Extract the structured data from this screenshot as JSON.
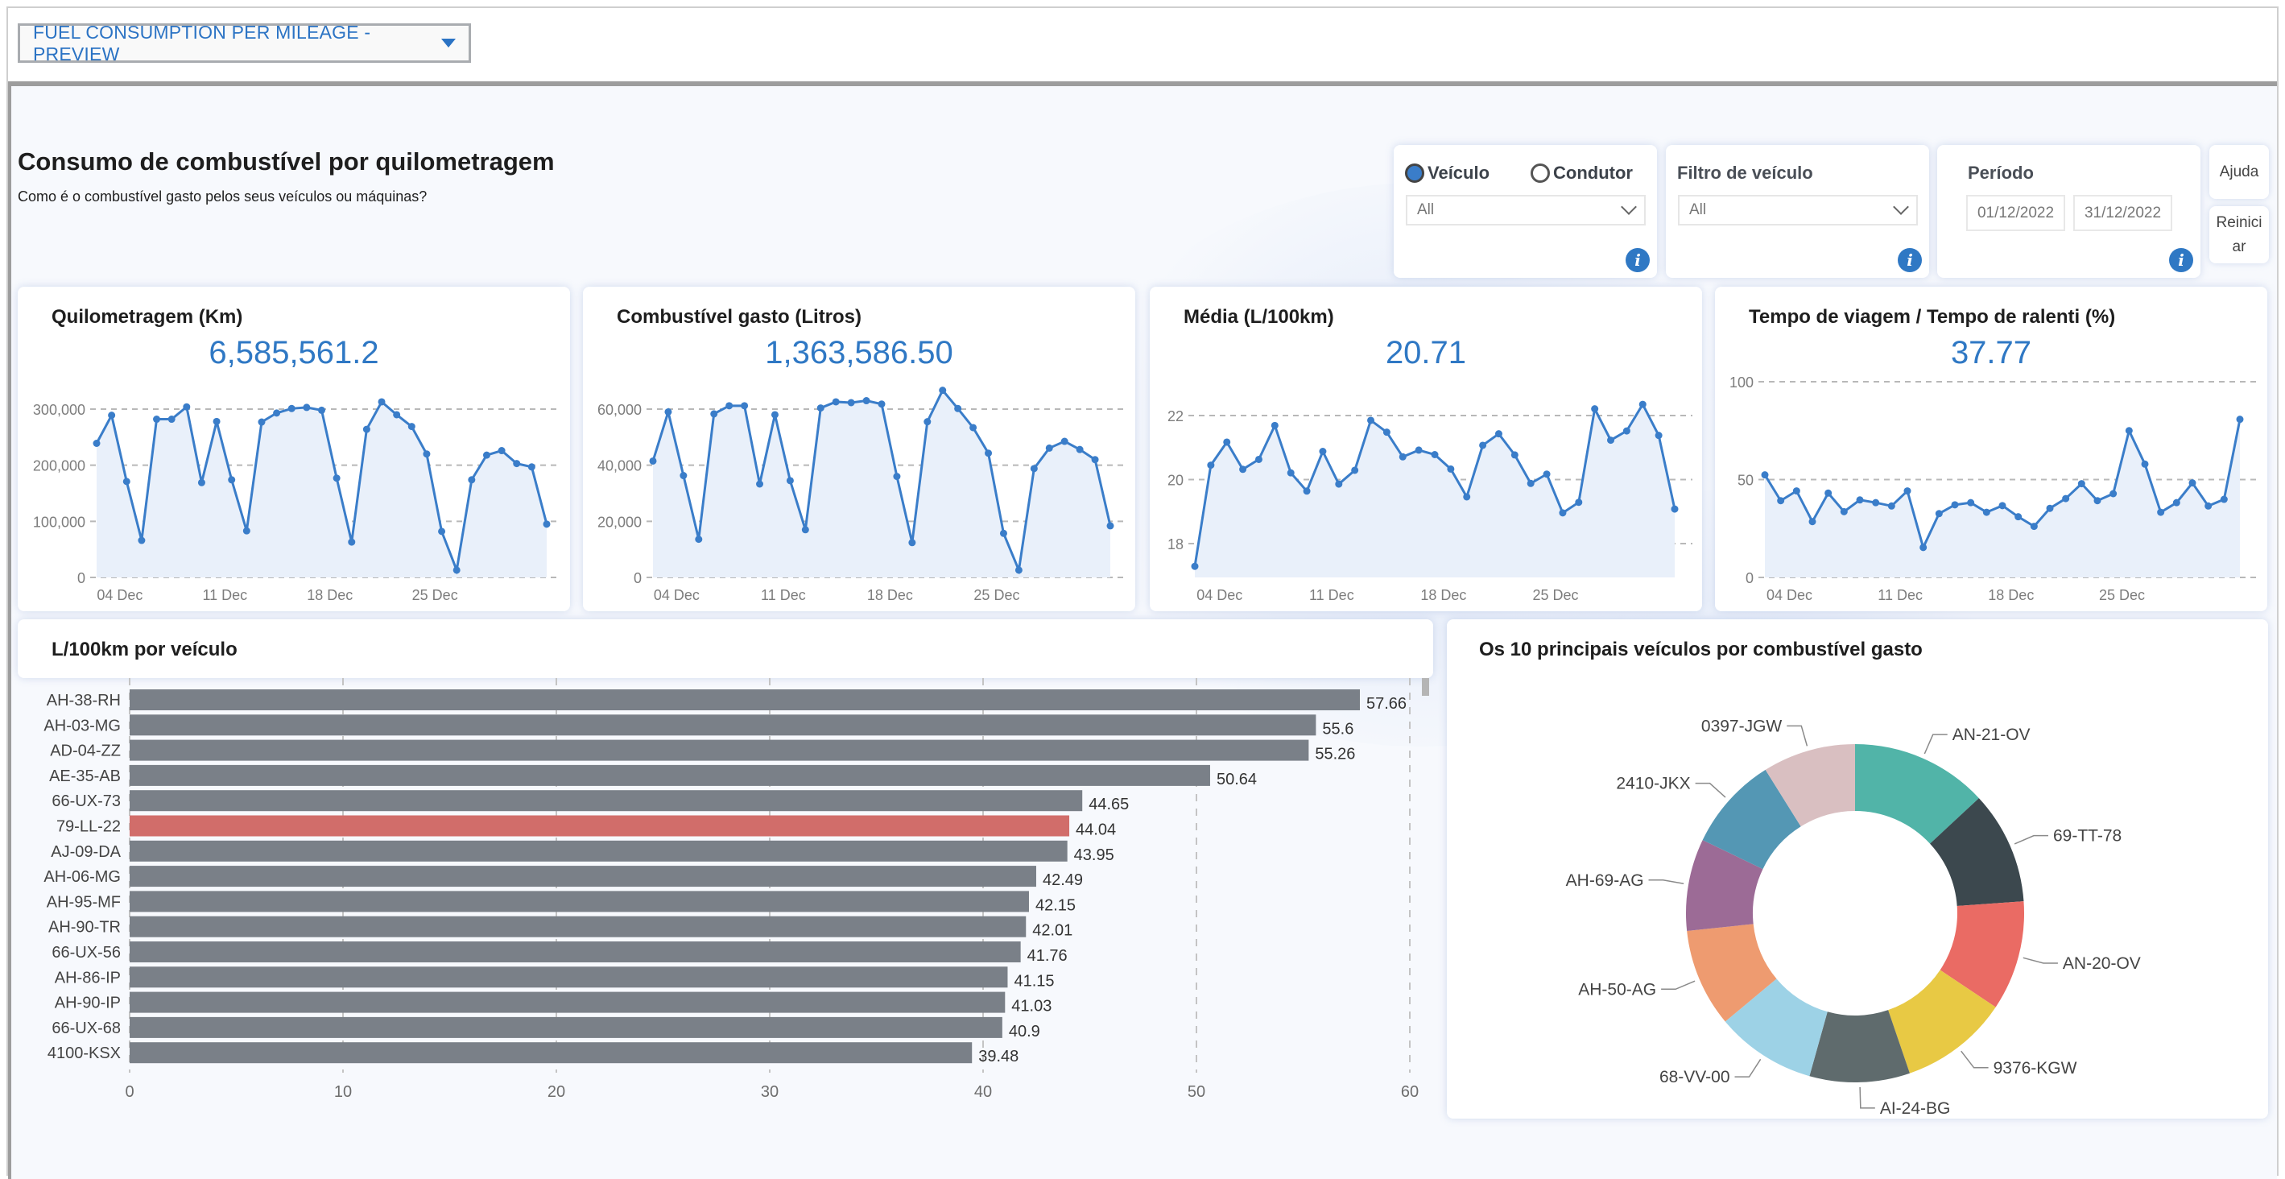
{
  "header": {
    "report_dropdown": "FUEL CONSUMPTION PER MILEAGE - PREVIEW"
  },
  "page": {
    "title": "Consumo de combustível por quilometragem",
    "subtitle": "Como é o combustível gasto pelos seus veículos ou máquinas?"
  },
  "filters": {
    "mode": {
      "options": [
        "Veículo",
        "Condutor"
      ],
      "selected": "Veículo",
      "dropdown_value": "All"
    },
    "vehicle_filter": {
      "label": "Filtro de veículo",
      "value": "All"
    },
    "period": {
      "label": "Período",
      "start": "01/12/2022",
      "end": "31/12/2022"
    },
    "help_button": "Ajuda",
    "reset_button": "Reiniciar"
  },
  "colors": {
    "accent": "#2f78c4",
    "line": "#3a7dc9",
    "area": "#e9f0fa",
    "bar": "#7a8088",
    "bar_highlight": "#d16d6a"
  },
  "chart_data": [
    {
      "type": "line",
      "title": "Quilometragem (Km)",
      "headline_value": "6,585,561.2",
      "x": [
        "01 Dec",
        "02 Dec",
        "03 Dec",
        "04 Dec",
        "05 Dec",
        "06 Dec",
        "07 Dec",
        "08 Dec",
        "09 Dec",
        "10 Dec",
        "11 Dec",
        "12 Dec",
        "13 Dec",
        "14 Dec",
        "15 Dec",
        "16 Dec",
        "17 Dec",
        "18 Dec",
        "19 Dec",
        "20 Dec",
        "21 Dec",
        "22 Dec",
        "23 Dec",
        "24 Dec",
        "25 Dec",
        "26 Dec",
        "27 Dec",
        "28 Dec",
        "29 Dec",
        "30 Dec",
        "31 Dec"
      ],
      "values": [
        239000,
        289000,
        171000,
        66000,
        282000,
        282000,
        304000,
        169000,
        278000,
        174000,
        83000,
        277000,
        293000,
        301000,
        303000,
        298000,
        177000,
        63000,
        264000,
        313000,
        290000,
        269000,
        220000,
        82000,
        13000,
        174000,
        218000,
        226000,
        203000,
        197000,
        95000
      ],
      "ylim": [
        0,
        300000
      ],
      "yticks": [
        0,
        100000,
        200000,
        300000
      ],
      "ytick_labels": [
        "0",
        "100,000",
        "200,000",
        "300,000"
      ],
      "xtick_labels": [
        "04 Dec",
        "11 Dec",
        "18 Dec",
        "25 Dec"
      ],
      "xtick_days": [
        4,
        11,
        18,
        25
      ],
      "grid": "dashed-horizontal"
    },
    {
      "type": "line",
      "title": "Combustível gasto (Litros)",
      "headline_value": "1,363,586.50",
      "x": [
        "01 Dec",
        "02 Dec",
        "03 Dec",
        "04 Dec",
        "05 Dec",
        "06 Dec",
        "07 Dec",
        "08 Dec",
        "09 Dec",
        "10 Dec",
        "11 Dec",
        "12 Dec",
        "13 Dec",
        "14 Dec",
        "15 Dec",
        "16 Dec",
        "17 Dec",
        "18 Dec",
        "19 Dec",
        "20 Dec",
        "21 Dec",
        "22 Dec",
        "23 Dec",
        "24 Dec",
        "25 Dec",
        "26 Dec",
        "27 Dec",
        "28 Dec",
        "29 Dec",
        "30 Dec",
        "31 Dec"
      ],
      "values": [
        41500,
        59000,
        36300,
        13600,
        58300,
        61200,
        61200,
        33300,
        58000,
        34500,
        17000,
        60400,
        62600,
        62300,
        63000,
        61800,
        36000,
        12400,
        55500,
        66700,
        60200,
        53400,
        44300,
        15700,
        2600,
        38800,
        46100,
        48500,
        45600,
        42000,
        18400
      ],
      "ylim": [
        0,
        60000
      ],
      "yticks": [
        0,
        20000,
        40000,
        60000
      ],
      "ytick_labels": [
        "0",
        "20,000",
        "40,000",
        "60,000"
      ],
      "xtick_labels": [
        "04 Dec",
        "11 Dec",
        "18 Dec",
        "25 Dec"
      ],
      "xtick_days": [
        4,
        11,
        18,
        25
      ],
      "grid": "dashed-horizontal"
    },
    {
      "type": "line",
      "title": "Média (L/100km)",
      "headline_value": "20.71",
      "x": [
        "01 Dec",
        "02 Dec",
        "03 Dec",
        "04 Dec",
        "05 Dec",
        "06 Dec",
        "07 Dec",
        "08 Dec",
        "09 Dec",
        "10 Dec",
        "11 Dec",
        "12 Dec",
        "13 Dec",
        "14 Dec",
        "15 Dec",
        "16 Dec",
        "17 Dec",
        "18 Dec",
        "19 Dec",
        "20 Dec",
        "21 Dec",
        "22 Dec",
        "23 Dec",
        "24 Dec",
        "25 Dec",
        "26 Dec",
        "27 Dec",
        "28 Dec",
        "29 Dec",
        "30 Dec",
        "31 Dec"
      ],
      "values": [
        17.29,
        20.45,
        21.17,
        20.32,
        20.63,
        21.69,
        20.21,
        19.64,
        20.88,
        19.86,
        20.29,
        21.85,
        21.48,
        20.71,
        20.92,
        20.78,
        20.33,
        19.46,
        21.07,
        21.43,
        20.77,
        19.88,
        20.17,
        18.96,
        19.29,
        22.21,
        21.23,
        21.52,
        22.35,
        21.38,
        19.08
      ],
      "ylim": [
        18,
        22
      ],
      "yticks": [
        18,
        20,
        22
      ],
      "ytick_labels": [
        "18",
        "20",
        "22"
      ],
      "xtick_labels": [
        "04 Dec",
        "11 Dec",
        "18 Dec",
        "25 Dec"
      ],
      "xtick_days": [
        4,
        11,
        18,
        25
      ],
      "grid": "dashed-horizontal"
    },
    {
      "type": "line",
      "title": "Tempo de viagem / Tempo de ralenti (%)",
      "headline_value": "37.77",
      "x": [
        "01 Dec",
        "02 Dec",
        "03 Dec",
        "04 Dec",
        "05 Dec",
        "06 Dec",
        "07 Dec",
        "08 Dec",
        "09 Dec",
        "10 Dec",
        "11 Dec",
        "12 Dec",
        "13 Dec",
        "14 Dec",
        "15 Dec",
        "16 Dec",
        "17 Dec",
        "18 Dec",
        "19 Dec",
        "20 Dec",
        "21 Dec",
        "22 Dec",
        "23 Dec",
        "24 Dec",
        "25 Dec",
        "26 Dec",
        "27 Dec",
        "28 Dec",
        "29 Dec",
        "30 Dec",
        "31 Dec"
      ],
      "values": [
        52.4,
        39.2,
        44.2,
        28.5,
        43.1,
        33.6,
        39.6,
        38.2,
        36.5,
        44.2,
        15.3,
        32.6,
        37.1,
        38.2,
        33.3,
        36.7,
        31.0,
        26.1,
        35.3,
        40.3,
        47.9,
        39.2,
        42.8,
        75.0,
        57.9,
        33.3,
        38.2,
        48.3,
        36.5,
        39.9,
        80.8
      ],
      "ylim": [
        0,
        100
      ],
      "yticks": [
        0,
        50,
        100
      ],
      "ytick_labels": [
        "0",
        "50",
        "100"
      ],
      "xtick_labels": [
        "04 Dec",
        "11 Dec",
        "18 Dec",
        "25 Dec"
      ],
      "xtick_days": [
        4,
        11,
        18,
        25
      ],
      "grid": "dashed-horizontal"
    },
    {
      "type": "bar",
      "orientation": "horizontal",
      "title": "L/100km por veículo",
      "categories": [
        "AH-38-RH",
        "AH-03-MG",
        "AD-04-ZZ",
        "AE-35-AB",
        "66-UX-73",
        "79-LL-22",
        "AJ-09-DA",
        "AH-06-MG",
        "AH-95-MF",
        "AH-90-TR",
        "66-UX-56",
        "AH-86-IP",
        "AH-90-IP",
        "66-UX-68",
        "4100-KSX"
      ],
      "values": [
        57.66,
        55.6,
        55.26,
        50.64,
        44.65,
        44.04,
        43.95,
        42.49,
        42.15,
        42.01,
        41.76,
        41.15,
        41.03,
        40.9,
        39.48
      ],
      "value_labels": [
        "57.66",
        "55.6",
        "55.26",
        "50.64",
        "44.65",
        "44.04",
        "43.95",
        "42.49",
        "42.15",
        "42.01",
        "41.76",
        "41.15",
        "41.03",
        "40.9",
        "39.48"
      ],
      "highlighted": "79-LL-22",
      "xlim": [
        0,
        60
      ],
      "xticks": [
        0,
        10,
        20,
        30,
        40,
        50,
        60
      ],
      "xtick_labels": [
        "0",
        "10",
        "20",
        "30",
        "40",
        "50",
        "60"
      ]
    },
    {
      "type": "pie",
      "donut": true,
      "title": "Os 10 principais veículos por combustível gasto",
      "labels": [
        "AN-21-OV",
        "69-TT-78",
        "AN-20-OV",
        "9376-KGW",
        "AI-24-BG",
        "68-VV-00",
        "AH-50-AG",
        "AH-69-AG",
        "2410-JKX",
        "0397-JGW"
      ],
      "values": [
        13.1,
        10.8,
        10.5,
        10.4,
        9.6,
        9.6,
        9.4,
        8.8,
        9.0,
        8.9
      ],
      "colors": [
        "#51b4a8",
        "#3c484e",
        "#ea6b64",
        "#e8c944",
        "#5f6b6d",
        "#9dd2e6",
        "#ee9b70",
        "#9c6b96",
        "#5497b4",
        "#d9bfc1"
      ],
      "legend": "outside-labels"
    }
  ]
}
